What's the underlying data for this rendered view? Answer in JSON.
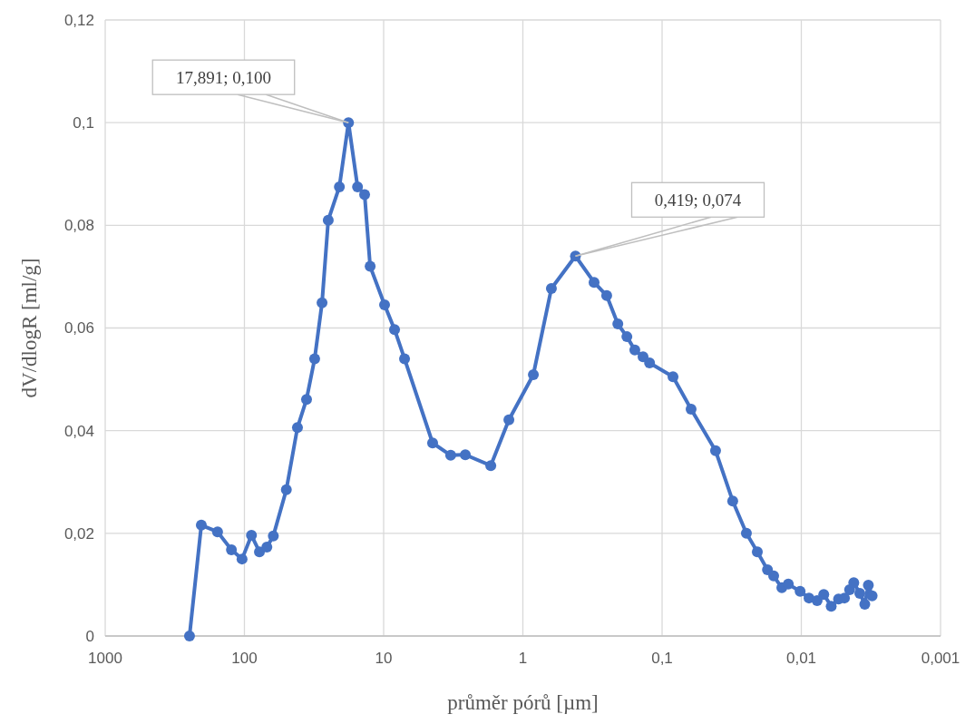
{
  "chart_data": {
    "type": "line",
    "xlabel": "průměr pórů [µm]",
    "ylabel": "dV/dlogR [ml/g]",
    "log": "x",
    "grid": true,
    "marker": "circle",
    "line_style": "solid",
    "xlim": [
      1000,
      0.001
    ],
    "xticks": [
      1000,
      100,
      10,
      1,
      {
        "value": 0.1,
        "label": "0,1"
      },
      {
        "value": 0.01,
        "label": "0,01"
      },
      {
        "value": 0.001,
        "label": "0,001"
      }
    ],
    "ylim": [
      0,
      0.12
    ],
    "yticks": [
      0,
      {
        "value": 0.02,
        "label": "0,02"
      },
      {
        "value": 0.04,
        "label": "0,04"
      },
      {
        "value": 0.06,
        "label": "0,06"
      },
      {
        "value": 0.08,
        "label": "0,08"
      },
      {
        "value": 0.1,
        "label": "0,1"
      },
      {
        "value": 0.12,
        "label": "0,12"
      }
    ],
    "annotations": [
      {
        "text": "17,891; 0,100",
        "x": 17.891,
        "y": 0.1
      },
      {
        "text": "0,419; 0,074",
        "x": 0.419,
        "y": 0.074
      }
    ],
    "series": [
      {
        "color": "#4472c4",
        "x": [
          248,
          204,
          156,
          124,
          104,
          89,
          78,
          69,
          62,
          50,
          41.6,
          35.8,
          31.3,
          27.7,
          25,
          20.8,
          17.891,
          15.4,
          13.7,
          12.5,
          9.85,
          8.35,
          7.08,
          4.45,
          3.3,
          2.59,
          1.7,
          1.26,
          0.841,
          0.624,
          0.419,
          0.308,
          0.25,
          0.208,
          0.179,
          0.157,
          0.137,
          0.123,
          0.0835,
          0.0619,
          0.0413,
          0.0311,
          0.0248,
          0.0207,
          0.0175,
          0.0158,
          0.0138,
          0.0124,
          0.0102,
          0.0088,
          0.0077,
          0.0069,
          0.0061,
          0.0054,
          0.0049,
          0.0045,
          0.0042,
          0.0038,
          0.0035,
          0.0033,
          0.0031
        ],
        "values": [
          0,
          0.0216,
          0.0203,
          0.0168,
          0.015,
          0.0196,
          0.0164,
          0.0173,
          0.0195,
          0.0285,
          0.0406,
          0.0461,
          0.054,
          0.0649,
          0.081,
          0.0875,
          0.1,
          0.0875,
          0.086,
          0.072,
          0.0645,
          0.0597,
          0.054,
          0.0376,
          0.0352,
          0.0353,
          0.0332,
          0.0421,
          0.0509,
          0.0677,
          0.074,
          0.0689,
          0.0663,
          0.0608,
          0.0583,
          0.0557,
          0.0544,
          0.0532,
          0.0505,
          0.0442,
          0.0361,
          0.0263,
          0.02,
          0.0164,
          0.0129,
          0.0117,
          0.0094,
          0.0101,
          0.0087,
          0.0074,
          0.0069,
          0.0081,
          0.0058,
          0.0072,
          0.0074,
          0.009,
          0.0104,
          0.0083,
          0.0062,
          0.0099,
          0.0078
        ]
      }
    ]
  }
}
